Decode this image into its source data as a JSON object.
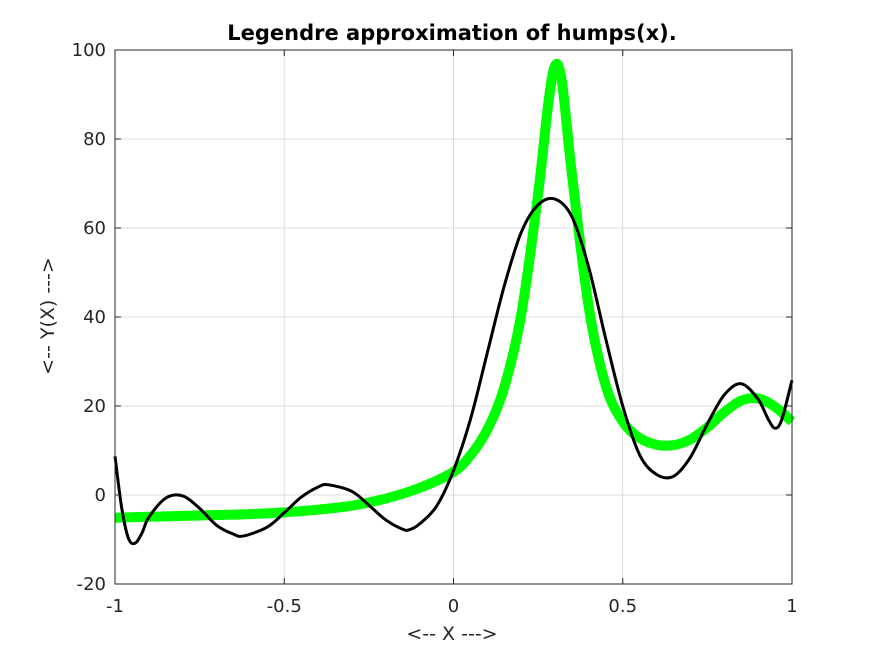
{
  "chart_data": {
    "type": "line",
    "title": "Legendre approximation of humps(x).",
    "xlabel": "<-- X --->",
    "ylabel": "<-- Y(X) --->",
    "xlim": [
      -1,
      1
    ],
    "ylim": [
      -20,
      100
    ],
    "xticks": [
      -1,
      -0.5,
      0,
      0.5,
      1
    ],
    "xtick_labels": [
      "-1",
      "-0.5",
      "0",
      "0.5",
      "1"
    ],
    "yticks": [
      -20,
      0,
      20,
      40,
      60,
      80,
      100
    ],
    "ytick_labels": [
      "-20",
      "0",
      "20",
      "40",
      "60",
      "80",
      "100"
    ],
    "grid": true,
    "legend": "none",
    "series": [
      {
        "color": "#00ff00",
        "line_width": "thick",
        "x": [
          -1,
          -0.9,
          -0.8,
          -0.7,
          -0.6,
          -0.5,
          -0.4,
          -0.3,
          -0.2,
          -0.1,
          0,
          0.05,
          0.1,
          0.15,
          0.2,
          0.25,
          0.28,
          0.3,
          0.32,
          0.35,
          0.4,
          0.45,
          0.5,
          0.55,
          0.6,
          0.65,
          0.7,
          0.75,
          0.8,
          0.85,
          0.9,
          0.95,
          1
        ],
        "y": [
          -5.1,
          -4.9,
          -4.7,
          -4.5,
          -4.3,
          -3.9,
          -3.3,
          -2.4,
          -0.8,
          1.6,
          5.2,
          8.9,
          14.7,
          24.2,
          40.5,
          67.7,
          88.0,
          96.5,
          93.0,
          72.0,
          42.0,
          24.5,
          16.5,
          12.8,
          11.3,
          11.2,
          12.5,
          15.2,
          18.6,
          21.2,
          21.7,
          19.8,
          16.5
        ]
      },
      {
        "color": "#000000",
        "line_width": "normal",
        "x": [
          -1,
          -0.98,
          -0.96,
          -0.94,
          -0.92,
          -0.9,
          -0.85,
          -0.8,
          -0.75,
          -0.7,
          -0.65,
          -0.62,
          -0.55,
          -0.5,
          -0.45,
          -0.4,
          -0.37,
          -0.3,
          -0.25,
          -0.2,
          -0.15,
          -0.13,
          -0.1,
          -0.05,
          0,
          0.05,
          0.1,
          0.15,
          0.2,
          0.25,
          0.3,
          0.35,
          0.4,
          0.45,
          0.5,
          0.55,
          0.6,
          0.65,
          0.7,
          0.75,
          0.8,
          0.85,
          0.9,
          0.93,
          0.95,
          0.97,
          1
        ],
        "y": [
          8.7,
          -3.0,
          -9.8,
          -10.8,
          -8.5,
          -5.0,
          -0.7,
          -0.2,
          -3.0,
          -6.8,
          -8.8,
          -9.2,
          -7.2,
          -4.0,
          -0.5,
          1.8,
          2.3,
          0.8,
          -2.3,
          -5.6,
          -7.7,
          -7.8,
          -6.5,
          -2.5,
          5.5,
          17.0,
          32.0,
          47.0,
          59.0,
          65.2,
          66.5,
          62.5,
          51.0,
          35.0,
          20.0,
          9.0,
          4.6,
          4.2,
          8.5,
          16.0,
          22.5,
          25.0,
          21.5,
          17.0,
          15.0,
          17.0,
          25.8
        ]
      }
    ]
  }
}
